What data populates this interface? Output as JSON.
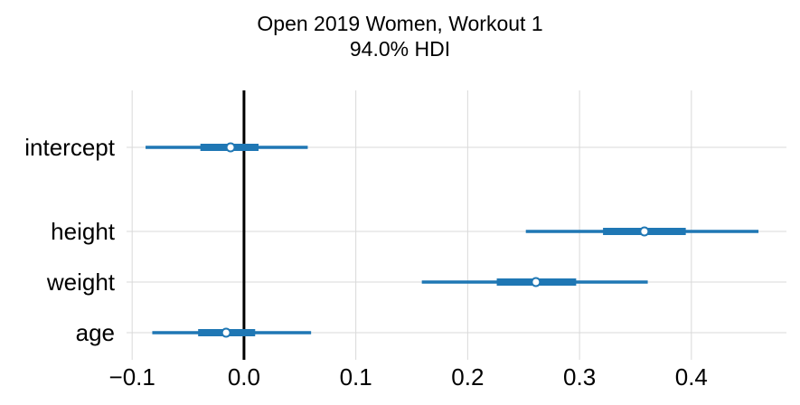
{
  "title_line1": "Open 2019 Women, Workout 1",
  "title_line2": "94.0% HDI",
  "chart_data": {
    "type": "forest",
    "title": "Open 2019 Women, Workout 1",
    "subtitle": "94.0% HDI",
    "xlim": [
      -0.105,
      0.485
    ],
    "xticks": [
      -0.1,
      0.0,
      0.1,
      0.2,
      0.3,
      0.4
    ],
    "xtick_labels": [
      "−0.1",
      "0.0",
      "0.1",
      "0.2",
      "0.3",
      "0.4"
    ],
    "reference_line": 0.0,
    "grid": true,
    "series_color": "#1f77b4",
    "variables": [
      {
        "label": "intercept",
        "mean": -0.012,
        "iqr": [
          -0.039,
          0.013
        ],
        "hdi": [
          -0.088,
          0.057
        ]
      },
      {
        "label": "height",
        "mean": 0.358,
        "iqr": [
          0.321,
          0.395
        ],
        "hdi": [
          0.252,
          0.46
        ]
      },
      {
        "label": "weight",
        "mean": 0.261,
        "iqr": [
          0.226,
          0.297
        ],
        "hdi": [
          0.159,
          0.361
        ]
      },
      {
        "label": "age",
        "mean": -0.016,
        "iqr": [
          -0.041,
          0.01
        ],
        "hdi": [
          -0.082,
          0.06
        ]
      }
    ]
  }
}
